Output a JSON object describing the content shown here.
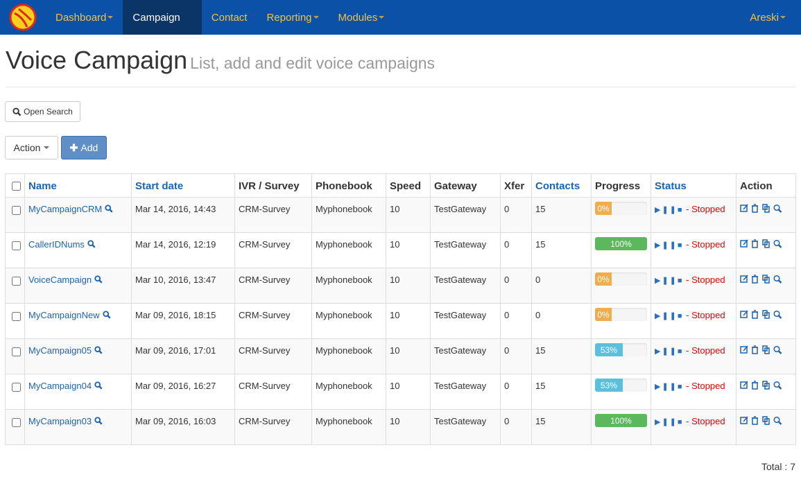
{
  "nav": {
    "items": [
      {
        "label": "Dashboard",
        "caret": true,
        "active": false
      },
      {
        "label": "Campaign",
        "caret": false,
        "active": true
      },
      {
        "label": "Contact",
        "caret": false,
        "active": false
      },
      {
        "label": "Reporting",
        "caret": true,
        "active": false
      },
      {
        "label": "Modules",
        "caret": true,
        "active": false
      }
    ],
    "user": "Areski"
  },
  "header": {
    "title": "Voice Campaign",
    "subtitle": "List, add and edit voice campaigns"
  },
  "buttons": {
    "search": "Open Search",
    "action": "Action",
    "add": "Add"
  },
  "table": {
    "columns": [
      {
        "label": "Name",
        "sortable": true
      },
      {
        "label": "Start date",
        "sortable": true
      },
      {
        "label": "IVR / Survey",
        "sortable": false
      },
      {
        "label": "Phonebook",
        "sortable": false
      },
      {
        "label": "Speed",
        "sortable": false
      },
      {
        "label": "Gateway",
        "sortable": false
      },
      {
        "label": "Xfer",
        "sortable": false
      },
      {
        "label": "Contacts",
        "sortable": true
      },
      {
        "label": "Progress",
        "sortable": false
      },
      {
        "label": "Status",
        "sortable": true
      },
      {
        "label": "Action",
        "sortable": false
      }
    ],
    "rows": [
      {
        "name": "MyCampaignCRM",
        "start_date": "Mar 14, 2016, 14:43",
        "survey": "CRM-Survey",
        "phonebook": "Myphonebook",
        "speed": 10,
        "gateway": "TestGateway",
        "xfer": 0,
        "contacts": 15,
        "progress": 0,
        "progress_label": "0%",
        "progress_color": "#f0ad4e",
        "status": "- Stopped"
      },
      {
        "name": "CallerIDNums",
        "start_date": "Mar 14, 2016, 12:19",
        "survey": "CRM-Survey",
        "phonebook": "Myphonebook",
        "speed": 10,
        "gateway": "TestGateway",
        "xfer": 0,
        "contacts": 15,
        "progress": 100,
        "progress_label": "100%",
        "progress_color": "#5cb85c",
        "status": "- Stopped"
      },
      {
        "name": "VoiceCampaign",
        "start_date": "Mar 10, 2016, 13:47",
        "survey": "CRM-Survey",
        "phonebook": "Myphonebook",
        "speed": 10,
        "gateway": "TestGateway",
        "xfer": 0,
        "contacts": 0,
        "progress": 0,
        "progress_label": "0%",
        "progress_color": "#f0ad4e",
        "status": "- Stopped"
      },
      {
        "name": "MyCampaignNew",
        "start_date": "Mar 09, 2016, 18:15",
        "survey": "CRM-Survey",
        "phonebook": "Myphonebook",
        "speed": 10,
        "gateway": "TestGateway",
        "xfer": 0,
        "contacts": 0,
        "progress": 0,
        "progress_label": "0%",
        "progress_color": "#f0ad4e",
        "status": "- Stopped"
      },
      {
        "name": "MyCampaign05",
        "start_date": "Mar 09, 2016, 17:01",
        "survey": "CRM-Survey",
        "phonebook": "Myphonebook",
        "speed": 10,
        "gateway": "TestGateway",
        "xfer": 0,
        "contacts": 15,
        "progress": 53,
        "progress_label": "53%",
        "progress_color": "#5bc0de",
        "status": "- Stopped"
      },
      {
        "name": "MyCampaign04",
        "start_date": "Mar 09, 2016, 16:27",
        "survey": "CRM-Survey",
        "phonebook": "Myphonebook",
        "speed": 10,
        "gateway": "TestGateway",
        "xfer": 0,
        "contacts": 15,
        "progress": 53,
        "progress_label": "53%",
        "progress_color": "#5bc0de",
        "status": "- Stopped"
      },
      {
        "name": "MyCampaign03",
        "start_date": "Mar 09, 2016, 16:03",
        "survey": "CRM-Survey",
        "phonebook": "Myphonebook",
        "speed": 10,
        "gateway": "TestGateway",
        "xfer": 0,
        "contacts": 15,
        "progress": 100,
        "progress_label": "100%",
        "progress_color": "#5cb85c",
        "status": "- Stopped"
      }
    ]
  },
  "footer": {
    "total": "Total : 7"
  }
}
